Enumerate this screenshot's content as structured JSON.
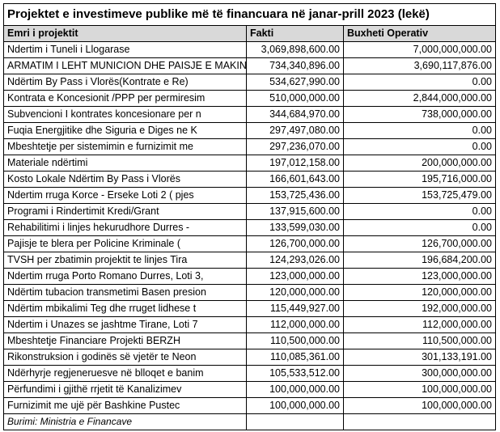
{
  "title": "Projektet e investimeve publike më të financuara në janar-prill 2023 (lekë)",
  "table": {
    "headers": [
      "Emri i projektit",
      "Fakti",
      "Buxheti Operativ"
    ],
    "rows": [
      [
        "Ndertim i Tuneli i Llogarase",
        "3,069,898,600.00",
        "7,000,000,000.00"
      ],
      [
        "ARMATIM I LEHT MUNICION DHE PAISJE E MAKIN",
        "734,340,896.00",
        "3,690,117,876.00"
      ],
      [
        "Ndërtim By Pass i Vlorës(Kontrate e Re)",
        "534,627,990.00",
        "0.00"
      ],
      [
        "Kontrata e Koncesionit /PPP per permiresim",
        "510,000,000.00",
        "2,844,000,000.00"
      ],
      [
        "Subvencioni I kontrates koncesionare per n",
        "344,684,970.00",
        "738,000,000.00"
      ],
      [
        "Fuqia Energjitike dhe Siguria e Diges ne K",
        "297,497,080.00",
        "0.00"
      ],
      [
        "Mbeshtetje per sistemimin e furnizimit me",
        "297,236,070.00",
        "0.00"
      ],
      [
        "Materiale ndërtimi",
        "197,012,158.00",
        "200,000,000.00"
      ],
      [
        "Kosto Lokale Ndërtim By Pass i Vlorës",
        "166,601,643.00",
        "195,716,000.00"
      ],
      [
        "Ndertim rruga Korce - Erseke Loti 2 ( pjes",
        "153,725,436.00",
        "153,725,479.00"
      ],
      [
        "Programi i Rindertimit Kredi/Grant",
        "137,915,600.00",
        "0.00"
      ],
      [
        "Rehabilitimi i linjes hekurudhore Durres -",
        "133,599,030.00",
        "0.00"
      ],
      [
        "Pajisje te blera per Policine Kriminale (",
        "126,700,000.00",
        "126,700,000.00"
      ],
      [
        "TVSH per zbatimin projektit te linjes Tira",
        "124,293,026.00",
        "196,684,200.00"
      ],
      [
        "Ndertim rruga Porto Romano Durres, Loti 3,",
        "123,000,000.00",
        "123,000,000.00"
      ],
      [
        "Ndërtim tubacion transmetimi Basen presion",
        "120,000,000.00",
        "120,000,000.00"
      ],
      [
        "Ndërtim mbikalimi Teg dhe rruget lidhese t",
        "115,449,927.00",
        "192,000,000.00"
      ],
      [
        "Ndertim i Unazes se jashtme Tirane, Loti 7",
        "112,000,000.00",
        "112,000,000.00"
      ],
      [
        "Mbeshtetje Financiare Projekti BERZH",
        "110,500,000.00",
        "110,500,000.00"
      ],
      [
        "Rikonstruksion i godinës së vjetër te Neon",
        "110,085,361.00",
        "301,133,191.00"
      ],
      [
        "Ndërhyrje regjeneruesve në blloqet e banim",
        "105,533,512.00",
        "300,000,000.00"
      ],
      [
        "Përfundimi i gjithë rrjetit të Kanalizimev",
        "100,000,000.00",
        "100,000,000.00"
      ],
      [
        "Furnizimit me ujë për Bashkine Pustec",
        "100,000,000.00",
        "100,000,000.00"
      ]
    ],
    "source": "Burimi: Ministria e Financave"
  }
}
